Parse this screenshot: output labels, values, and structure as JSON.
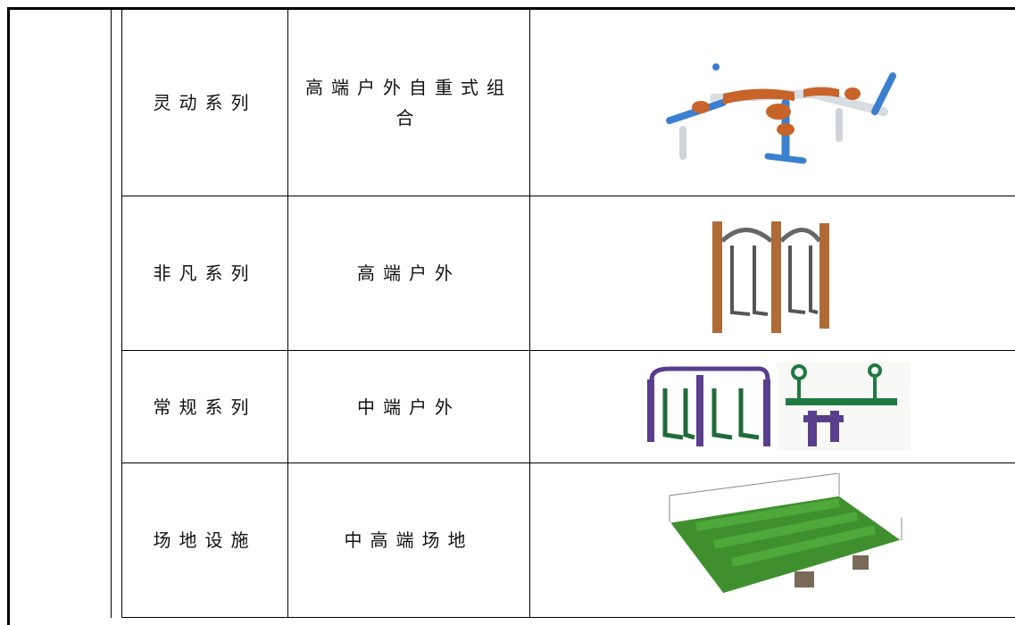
{
  "table": {
    "rows": [
      [
        "灵动系列",
        "高端户外自重式组合"
      ],
      [
        "非凡系列",
        "高端户外"
      ],
      [
        "常规系列",
        "中端户外"
      ],
      [
        "场地设施",
        "中高端场地"
      ]
    ]
  }
}
